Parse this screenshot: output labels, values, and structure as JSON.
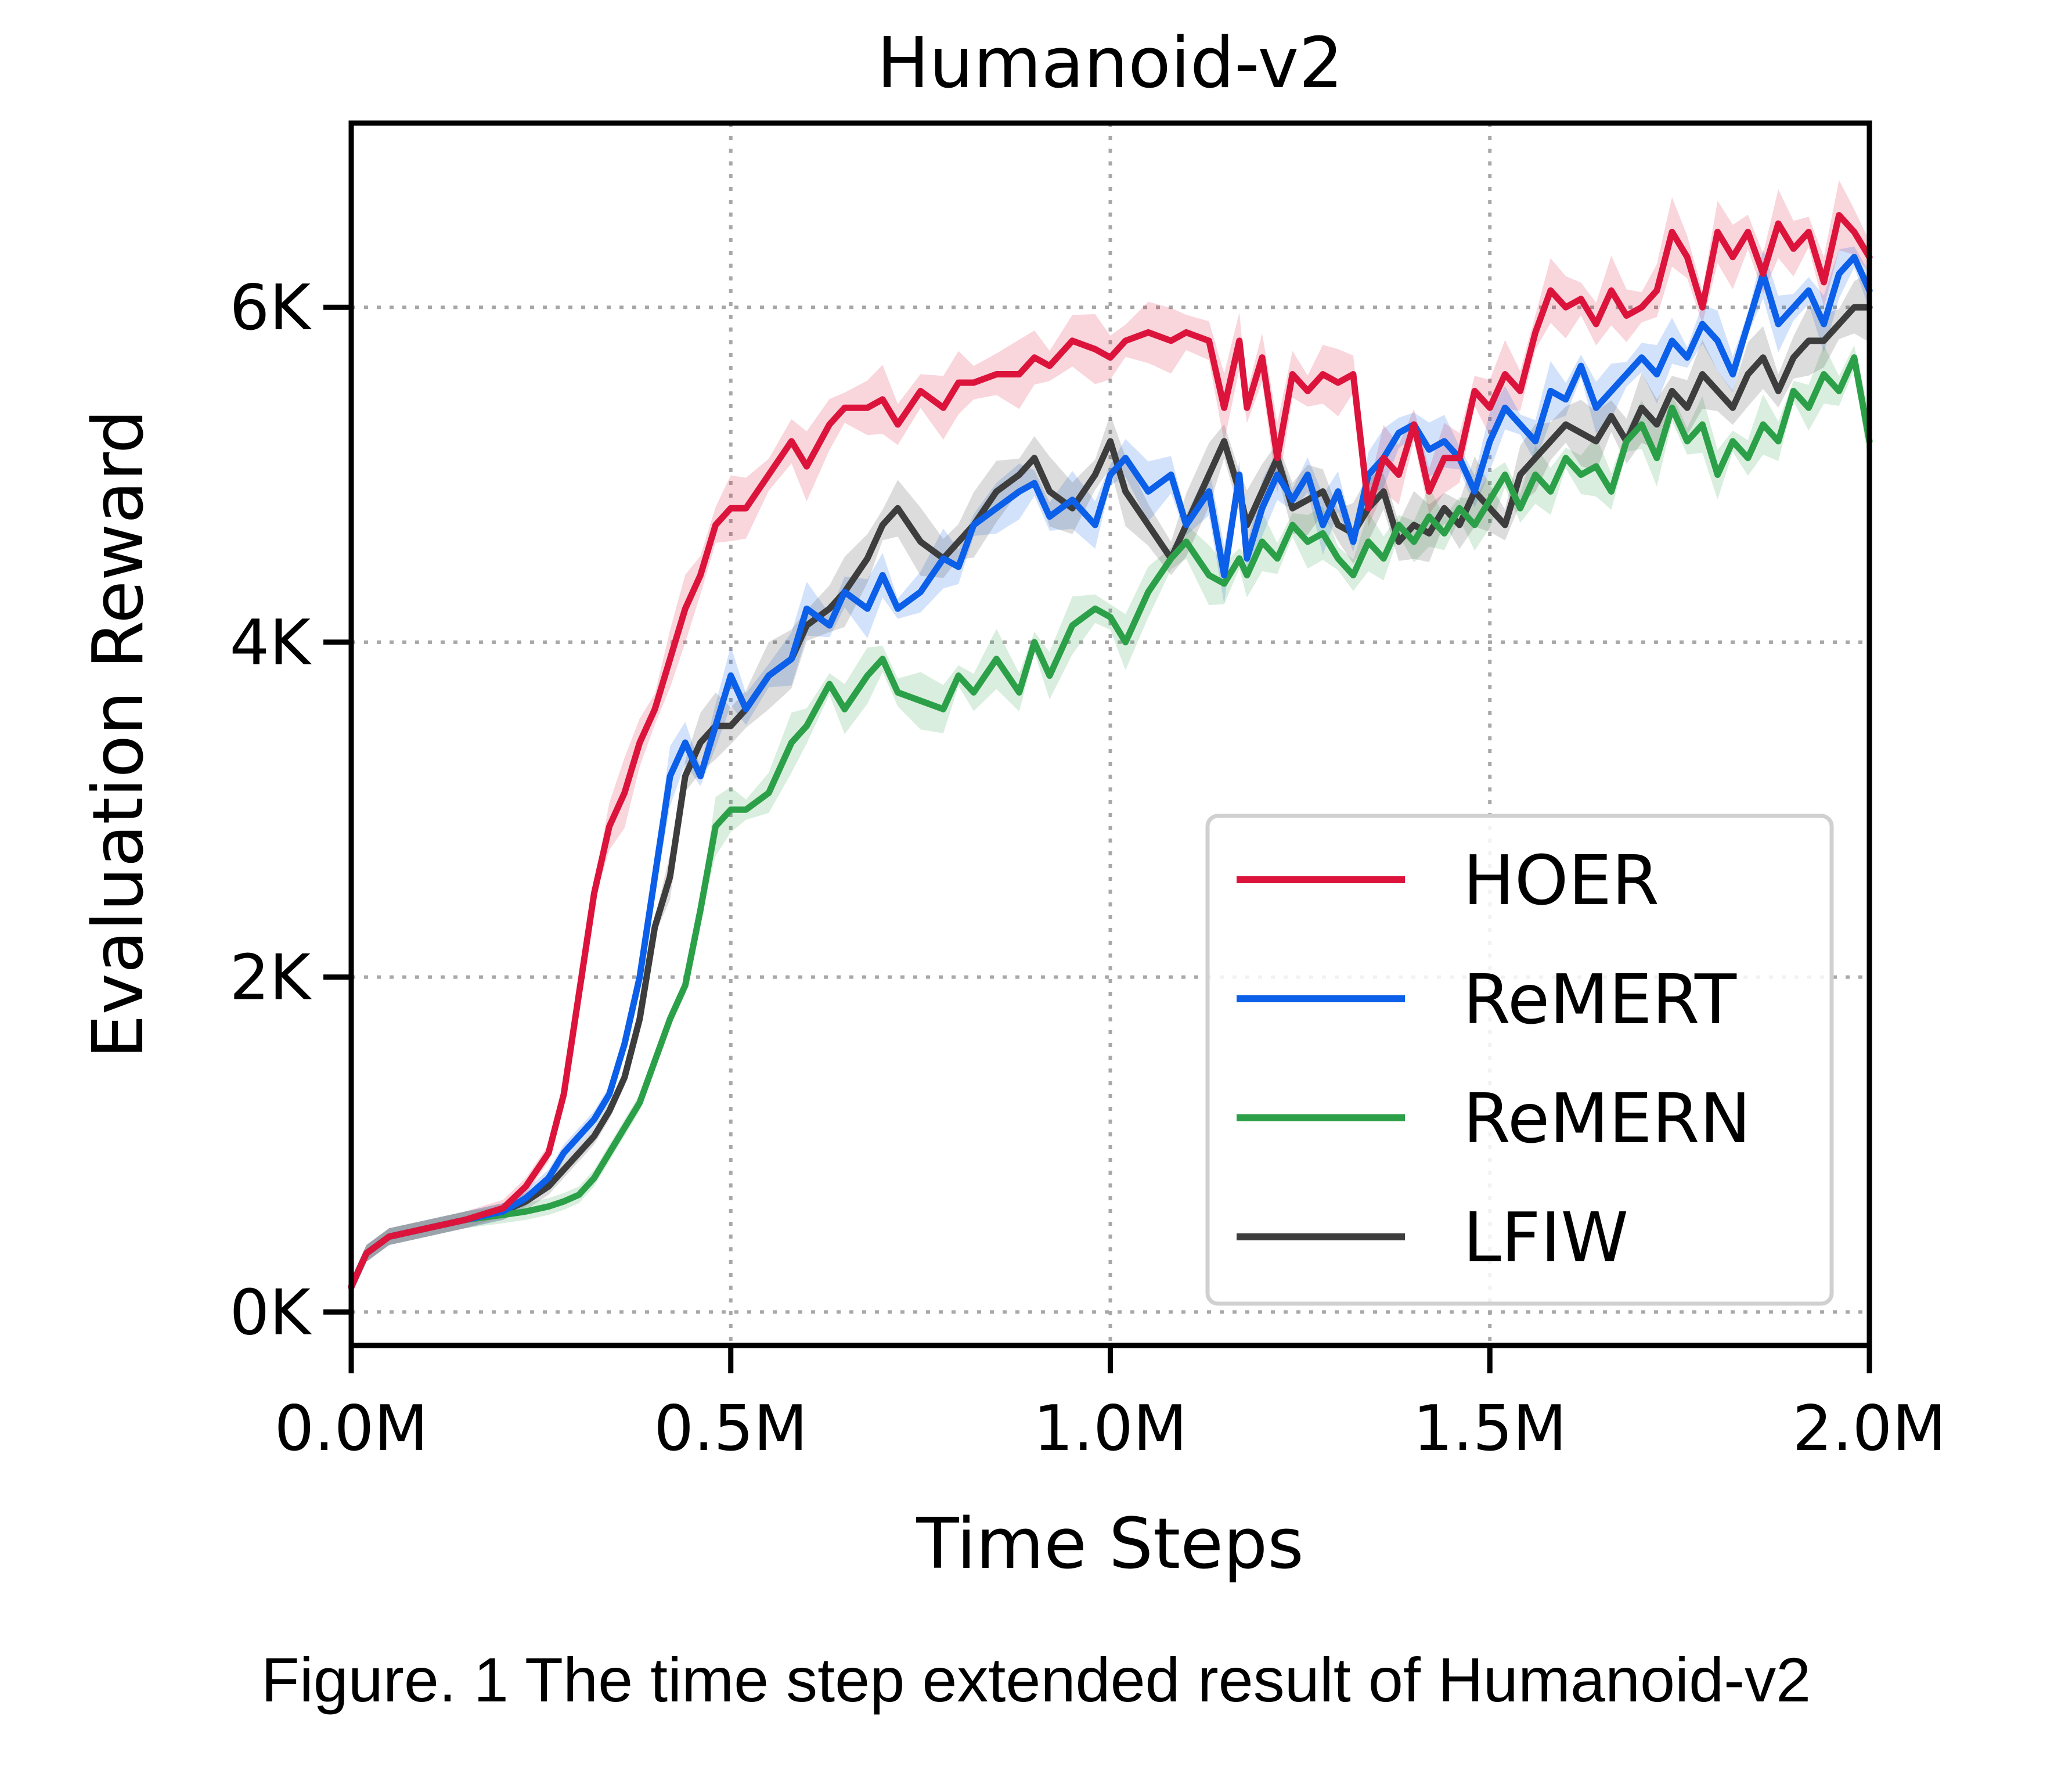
{
  "caption": "Figure. 1 The time step extended result of Humanoid-v2",
  "chart_data": {
    "type": "line",
    "title": "Humanoid-v2",
    "xlabel": "Time Steps",
    "ylabel": "Evaluation Reward",
    "xlim": [
      0,
      2.0
    ],
    "ylim": [
      -0.2,
      7.1
    ],
    "x_unit": "M steps",
    "y_unit": "K reward",
    "xticks": [
      0.0,
      0.5,
      1.0,
      1.5,
      2.0
    ],
    "xtick_labels": [
      "0.0M",
      "0.5M",
      "1.0M",
      "1.5M",
      "2.0M"
    ],
    "yticks": [
      0,
      2,
      4,
      6
    ],
    "ytick_labels": [
      "0K",
      "2K",
      "4K",
      "6K"
    ],
    "grid": true,
    "legend": "lower-right",
    "series": [
      {
        "name": "HOER",
        "color": "#dc143c",
        "x": [
          0.0,
          0.02,
          0.05,
          0.1,
          0.15,
          0.2,
          0.23,
          0.26,
          0.28,
          0.3,
          0.32,
          0.34,
          0.36,
          0.38,
          0.4,
          0.42,
          0.44,
          0.46,
          0.48,
          0.5,
          0.52,
          0.55,
          0.58,
          0.6,
          0.63,
          0.65,
          0.68,
          0.7,
          0.72,
          0.75,
          0.78,
          0.8,
          0.82,
          0.85,
          0.88,
          0.9,
          0.92,
          0.95,
          0.98,
          1.0,
          1.02,
          1.05,
          1.08,
          1.1,
          1.13,
          1.15,
          1.17,
          1.18,
          1.2,
          1.22,
          1.24,
          1.26,
          1.28,
          1.3,
          1.32,
          1.34,
          1.36,
          1.38,
          1.4,
          1.42,
          1.44,
          1.46,
          1.48,
          1.5,
          1.52,
          1.54,
          1.56,
          1.58,
          1.6,
          1.62,
          1.64,
          1.66,
          1.68,
          1.7,
          1.72,
          1.74,
          1.76,
          1.78,
          1.8,
          1.82,
          1.84,
          1.86,
          1.88,
          1.9,
          1.92,
          1.94,
          1.96,
          1.98,
          2.0
        ],
        "y": [
          0.15,
          0.35,
          0.45,
          0.5,
          0.55,
          0.62,
          0.75,
          0.95,
          1.3,
          1.9,
          2.5,
          2.9,
          3.1,
          3.4,
          3.6,
          3.9,
          4.2,
          4.4,
          4.7,
          4.8,
          4.8,
          5.0,
          5.2,
          5.05,
          5.3,
          5.4,
          5.4,
          5.45,
          5.3,
          5.5,
          5.4,
          5.55,
          5.55,
          5.6,
          5.6,
          5.7,
          5.65,
          5.8,
          5.75,
          5.7,
          5.8,
          5.85,
          5.8,
          5.85,
          5.8,
          5.4,
          5.8,
          5.4,
          5.7,
          5.1,
          5.6,
          5.5,
          5.6,
          5.55,
          5.6,
          4.8,
          5.1,
          5.0,
          5.3,
          4.9,
          5.1,
          5.1,
          5.5,
          5.4,
          5.6,
          5.5,
          5.85,
          6.1,
          6.0,
          6.05,
          5.9,
          6.1,
          5.95,
          6.0,
          6.1,
          6.45,
          6.3,
          6.0,
          6.45,
          6.3,
          6.45,
          6.2,
          6.5,
          6.35,
          6.45,
          6.15,
          6.55,
          6.45,
          6.3
        ]
      },
      {
        "name": "ReMERT",
        "color": "#0b5fe8",
        "x": [
          0.0,
          0.02,
          0.05,
          0.1,
          0.15,
          0.2,
          0.23,
          0.26,
          0.28,
          0.3,
          0.32,
          0.34,
          0.36,
          0.38,
          0.4,
          0.42,
          0.44,
          0.46,
          0.48,
          0.5,
          0.52,
          0.55,
          0.58,
          0.6,
          0.63,
          0.65,
          0.68,
          0.7,
          0.72,
          0.75,
          0.78,
          0.8,
          0.82,
          0.85,
          0.88,
          0.9,
          0.92,
          0.95,
          0.98,
          1.0,
          1.02,
          1.05,
          1.08,
          1.1,
          1.13,
          1.15,
          1.17,
          1.18,
          1.2,
          1.22,
          1.24,
          1.26,
          1.28,
          1.3,
          1.32,
          1.34,
          1.36,
          1.38,
          1.4,
          1.42,
          1.44,
          1.46,
          1.48,
          1.5,
          1.52,
          1.54,
          1.56,
          1.58,
          1.6,
          1.62,
          1.64,
          1.66,
          1.68,
          1.7,
          1.72,
          1.74,
          1.76,
          1.78,
          1.8,
          1.82,
          1.84,
          1.86,
          1.88,
          1.9,
          1.92,
          1.94,
          1.96,
          1.98,
          2.0
        ],
        "y": [
          0.15,
          0.35,
          0.45,
          0.5,
          0.55,
          0.6,
          0.68,
          0.8,
          0.95,
          1.05,
          1.15,
          1.3,
          1.6,
          2.0,
          2.6,
          3.2,
          3.4,
          3.2,
          3.5,
          3.8,
          3.6,
          3.8,
          3.9,
          4.2,
          4.1,
          4.3,
          4.2,
          4.4,
          4.2,
          4.3,
          4.5,
          4.45,
          4.7,
          4.8,
          4.9,
          4.95,
          4.75,
          4.85,
          4.7,
          5.0,
          5.1,
          4.9,
          5.0,
          4.7,
          4.9,
          4.4,
          5.0,
          4.5,
          4.8,
          5.0,
          4.85,
          5.0,
          4.7,
          4.9,
          4.6,
          5.0,
          5.1,
          5.25,
          5.3,
          5.15,
          5.2,
          5.1,
          4.9,
          5.2,
          5.4,
          5.3,
          5.2,
          5.5,
          5.45,
          5.65,
          5.4,
          5.5,
          5.6,
          5.7,
          5.6,
          5.8,
          5.7,
          5.9,
          5.8,
          5.6,
          5.9,
          6.2,
          5.9,
          6.0,
          6.1,
          5.9,
          6.2,
          6.3,
          6.1
        ]
      },
      {
        "name": "ReMERN",
        "color": "#2ca048",
        "x": [
          0.0,
          0.02,
          0.05,
          0.1,
          0.15,
          0.2,
          0.23,
          0.26,
          0.28,
          0.3,
          0.32,
          0.34,
          0.36,
          0.38,
          0.4,
          0.42,
          0.44,
          0.46,
          0.48,
          0.5,
          0.52,
          0.55,
          0.58,
          0.6,
          0.63,
          0.65,
          0.68,
          0.7,
          0.72,
          0.75,
          0.78,
          0.8,
          0.82,
          0.85,
          0.88,
          0.9,
          0.92,
          0.95,
          0.98,
          1.0,
          1.02,
          1.05,
          1.08,
          1.1,
          1.13,
          1.15,
          1.17,
          1.18,
          1.2,
          1.22,
          1.24,
          1.26,
          1.28,
          1.3,
          1.32,
          1.34,
          1.36,
          1.38,
          1.4,
          1.42,
          1.44,
          1.46,
          1.48,
          1.5,
          1.52,
          1.54,
          1.56,
          1.58,
          1.6,
          1.62,
          1.64,
          1.66,
          1.68,
          1.7,
          1.72,
          1.74,
          1.76,
          1.78,
          1.8,
          1.82,
          1.84,
          1.86,
          1.88,
          1.9,
          1.92,
          1.94,
          1.96,
          1.98,
          2.0
        ],
        "y": [
          0.15,
          0.35,
          0.45,
          0.5,
          0.55,
          0.58,
          0.6,
          0.63,
          0.66,
          0.7,
          0.8,
          0.95,
          1.1,
          1.25,
          1.5,
          1.75,
          1.95,
          2.4,
          2.9,
          3.0,
          3.0,
          3.1,
          3.4,
          3.5,
          3.75,
          3.6,
          3.8,
          3.9,
          3.7,
          3.65,
          3.6,
          3.8,
          3.7,
          3.9,
          3.7,
          4.0,
          3.8,
          4.1,
          4.2,
          4.15,
          4.0,
          4.3,
          4.5,
          4.6,
          4.4,
          4.35,
          4.5,
          4.4,
          4.6,
          4.5,
          4.7,
          4.6,
          4.65,
          4.5,
          4.4,
          4.6,
          4.5,
          4.7,
          4.6,
          4.75,
          4.65,
          4.8,
          4.7,
          4.85,
          5.0,
          4.8,
          5.0,
          4.9,
          5.1,
          5.0,
          5.05,
          4.9,
          5.2,
          5.3,
          5.1,
          5.4,
          5.2,
          5.3,
          5.0,
          5.2,
          5.1,
          5.3,
          5.2,
          5.5,
          5.4,
          5.6,
          5.5,
          5.7,
          5.2
        ]
      },
      {
        "name": "LFIW",
        "color": "#3d3d3d",
        "x": [
          0.0,
          0.02,
          0.05,
          0.1,
          0.15,
          0.2,
          0.23,
          0.26,
          0.28,
          0.3,
          0.32,
          0.34,
          0.36,
          0.38,
          0.4,
          0.42,
          0.44,
          0.46,
          0.48,
          0.5,
          0.52,
          0.55,
          0.58,
          0.6,
          0.63,
          0.65,
          0.68,
          0.7,
          0.72,
          0.75,
          0.78,
          0.8,
          0.82,
          0.85,
          0.88,
          0.9,
          0.92,
          0.95,
          0.98,
          1.0,
          1.02,
          1.05,
          1.08,
          1.1,
          1.13,
          1.15,
          1.17,
          1.18,
          1.2,
          1.22,
          1.24,
          1.26,
          1.28,
          1.3,
          1.32,
          1.34,
          1.36,
          1.38,
          1.4,
          1.42,
          1.44,
          1.46,
          1.48,
          1.5,
          1.52,
          1.54,
          1.56,
          1.58,
          1.6,
          1.62,
          1.64,
          1.66,
          1.68,
          1.7,
          1.72,
          1.74,
          1.76,
          1.78,
          1.8,
          1.82,
          1.84,
          1.86,
          1.88,
          1.9,
          1.92,
          1.94,
          1.96,
          1.98,
          2.0
        ],
        "y": [
          0.15,
          0.35,
          0.45,
          0.5,
          0.55,
          0.6,
          0.66,
          0.75,
          0.85,
          0.95,
          1.05,
          1.2,
          1.4,
          1.75,
          2.3,
          2.6,
          3.2,
          3.4,
          3.5,
          3.5,
          3.6,
          3.8,
          3.9,
          4.1,
          4.2,
          4.3,
          4.5,
          4.7,
          4.8,
          4.6,
          4.5,
          4.6,
          4.7,
          4.9,
          5.0,
          5.1,
          4.9,
          4.8,
          5.0,
          5.2,
          4.9,
          4.7,
          4.5,
          4.7,
          5.0,
          5.2,
          4.9,
          4.7,
          4.9,
          5.1,
          4.8,
          4.85,
          4.9,
          4.7,
          4.65,
          4.8,
          4.9,
          4.6,
          4.7,
          4.65,
          4.8,
          4.7,
          4.9,
          4.8,
          4.7,
          5.0,
          5.1,
          5.2,
          5.3,
          5.25,
          5.2,
          5.35,
          5.2,
          5.4,
          5.3,
          5.5,
          5.4,
          5.6,
          5.5,
          5.4,
          5.6,
          5.7,
          5.5,
          5.7,
          5.8,
          5.8,
          5.9,
          6.0,
          6.0
        ]
      }
    ]
  }
}
